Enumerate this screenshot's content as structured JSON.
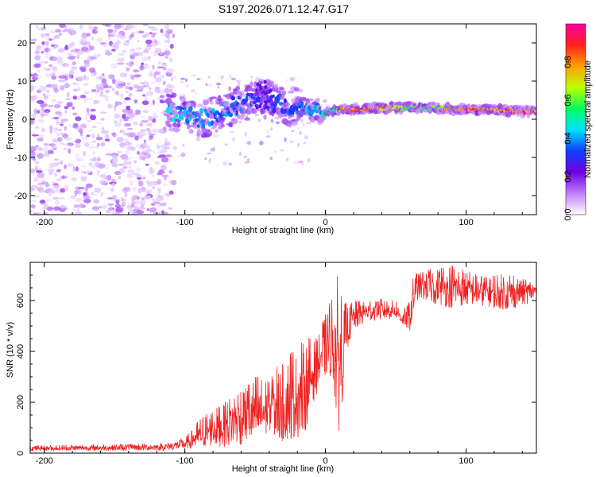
{
  "title": "S197.2026.071.12.47.G17",
  "chart_data": [
    {
      "type": "heatmap",
      "name": "spectrogram",
      "xlabel": "Height of straight line (km)",
      "ylabel": "Frequency (Hz)",
      "xlim": [
        -210,
        150
      ],
      "ylim": [
        -25,
        25
      ],
      "xticks": [
        -200,
        -100,
        0,
        100
      ],
      "yticks": [
        20,
        10,
        0,
        -10,
        -20
      ],
      "colorbar": {
        "label": "Normalized spectral amplitude",
        "range": [
          0,
          1
        ],
        "ticks": [
          0.0,
          0.2,
          0.4,
          0.6,
          0.8
        ],
        "tick_labels": [
          "0.0",
          "0.2",
          "0.4",
          "0.6",
          "0.8"
        ],
        "stops": [
          "#ffffff",
          "#c080ff",
          "#7000e0",
          "#1040ff",
          "#00e0ff",
          "#00ff60",
          "#c0ff00",
          "#ffa000",
          "#ff2020",
          "#ff00a0"
        ]
      },
      "ridge": [
        {
          "x": -110,
          "f": 2
        },
        {
          "x": -100,
          "f": 1
        },
        {
          "x": -90,
          "f": 0
        },
        {
          "x": -80,
          "f": 1
        },
        {
          "x": -70,
          "f": 3
        },
        {
          "x": -60,
          "f": 4
        },
        {
          "x": -50,
          "f": 5
        },
        {
          "x": -40,
          "f": 5
        },
        {
          "x": -30,
          "f": 4
        },
        {
          "x": -20,
          "f": 3
        },
        {
          "x": -10,
          "f": 2.5
        },
        {
          "x": 0,
          "f": 2
        },
        {
          "x": 10,
          "f": 2.5
        },
        {
          "x": 20,
          "f": 2.5
        },
        {
          "x": 40,
          "f": 3
        },
        {
          "x": 60,
          "f": 3
        },
        {
          "x": 80,
          "f": 3
        },
        {
          "x": 100,
          "f": 2.5
        },
        {
          "x": 120,
          "f": 2.5
        },
        {
          "x": 140,
          "f": 2
        },
        {
          "x": 150,
          "f": 2
        }
      ],
      "ridge_amplitude": [
        {
          "x": -110,
          "a": 0.45
        },
        {
          "x": -80,
          "a": 0.4
        },
        {
          "x": -50,
          "a": 0.35
        },
        {
          "x": -20,
          "a": 0.35
        },
        {
          "x": 0,
          "a": 0.5
        },
        {
          "x": 15,
          "a": 0.85
        },
        {
          "x": 35,
          "a": 0.9
        },
        {
          "x": 60,
          "a": 0.6
        },
        {
          "x": 80,
          "a": 0.7
        },
        {
          "x": 100,
          "a": 0.9
        },
        {
          "x": 120,
          "a": 0.85
        },
        {
          "x": 140,
          "a": 0.9
        },
        {
          "x": 150,
          "a": 0.9
        }
      ]
    },
    {
      "type": "line",
      "name": "snr",
      "xlabel": "Height of straight line (km)",
      "ylabel": "SNR (10 * v/v)",
      "xlim": [
        -210,
        150
      ],
      "ylim": [
        0,
        750
      ],
      "xticks": [
        -200,
        -100,
        0,
        100
      ],
      "yticks": [
        0,
        200,
        400,
        600
      ],
      "color": "#ee2222",
      "series": [
        {
          "name": "SNR envelope",
          "x": [
            -210,
            -150,
            -115,
            -100,
            -90,
            -80,
            -70,
            -60,
            -50,
            -40,
            -30,
            -25,
            -20,
            -15,
            -10,
            -5,
            0,
            5,
            8,
            10,
            12,
            15,
            20,
            25,
            30,
            40,
            50,
            55,
            60,
            62,
            65,
            70,
            80,
            90,
            100,
            110,
            120,
            130,
            140,
            150
          ],
          "lower": [
            10,
            10,
            10,
            15,
            20,
            25,
            25,
            30,
            35,
            40,
            45,
            50,
            60,
            70,
            180,
            250,
            300,
            300,
            100,
            80,
            200,
            400,
            480,
            500,
            520,
            520,
            530,
            500,
            480,
            520,
            600,
            600,
            580,
            570,
            580,
            580,
            570,
            560,
            580,
            600
          ],
          "upper": [
            30,
            35,
            40,
            60,
            130,
            180,
            220,
            260,
            300,
            320,
            360,
            400,
            420,
            450,
            460,
            480,
            550,
            620,
            700,
            690,
            620,
            590,
            600,
            610,
            600,
            610,
            600,
            560,
            600,
            700,
            710,
            720,
            730,
            740,
            720,
            700,
            700,
            710,
            690,
            680
          ]
        }
      ]
    }
  ]
}
